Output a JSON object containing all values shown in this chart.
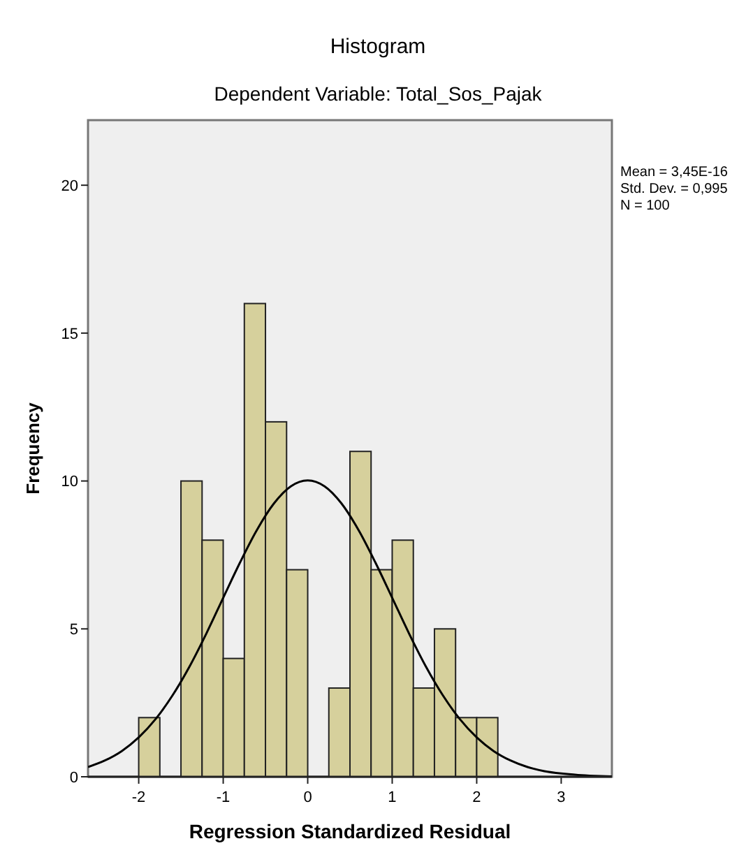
{
  "chart_data": {
    "type": "histogram",
    "title": "Histogram",
    "subtitle": "Dependent Variable: Total_Sos_Pajak",
    "xlabel": "Regression Standardized Residual",
    "ylabel": "Frequency",
    "bins": [
      -2,
      -1.75,
      -1.5,
      -1.25,
      -1,
      -0.75,
      -0.5,
      -0.25,
      0,
      0.25,
      0.5,
      0.75,
      1,
      1.25,
      1.5,
      1.75,
      2,
      2.25
    ],
    "series": [
      {
        "color": "#d6d09c",
        "values": [
          2,
          0,
          10,
          8,
          4,
          16,
          12,
          7,
          0,
          3,
          11,
          7,
          8,
          3,
          5,
          2,
          2
        ]
      },
      {
        "type": "line",
        "color": "#000000",
        "x": [
          -2.6,
          -2.4,
          -2.2,
          -2,
          -1.8,
          -1.6,
          -1.4,
          -1.2,
          -1,
          -0.8,
          -0.6,
          -0.4,
          -0.2,
          0,
          0.2,
          0.4,
          0.6,
          0.8,
          1,
          1.2,
          1.4,
          1.6,
          1.8,
          2,
          2.2,
          2.4,
          2.6,
          2.8,
          3,
          3.2,
          3.4,
          3.6
        ],
        "values": [
          0.33,
          0.55,
          0.87,
          1.33,
          1.95,
          2.75,
          3.72,
          4.84,
          6.05,
          7.25,
          8.35,
          9.24,
          9.82,
          10.02,
          9.82,
          9.24,
          8.35,
          7.25,
          6.05,
          4.84,
          3.72,
          2.75,
          1.95,
          1.33,
          0.87,
          0.55,
          0.33,
          0.19,
          0.11,
          0.06,
          0.03,
          0.01
        ]
      }
    ],
    "xlim": [
      -2.6,
      3.6
    ],
    "ylim": [
      0,
      22.2
    ],
    "xticks": [
      -2,
      -1,
      0,
      1,
      2,
      3
    ],
    "yticks": [
      0,
      5,
      10,
      15,
      20
    ],
    "grid": false,
    "annotations": [
      "Mean = 3,45E-16",
      "Std. Dev. = 0,995",
      "N = 100"
    ]
  }
}
